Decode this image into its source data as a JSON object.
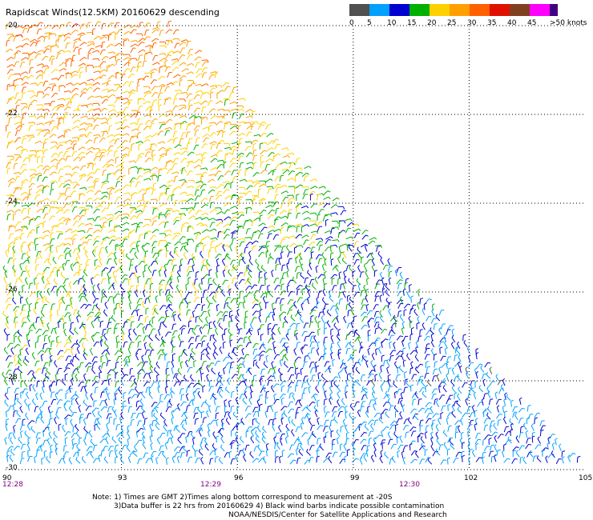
{
  "title": "Rapidscat Winds(12.5KM) 20160629 descending",
  "legend": {
    "colors": [
      "#505050",
      "#00a0ff",
      "#0000d0",
      "#00b000",
      "#ffd000",
      "#ffa000",
      "#ff6000",
      "#e01000",
      "#804020",
      "#ff00ff",
      "#400080"
    ],
    "labels": [
      "0",
      "5",
      "10",
      "15",
      "20",
      "25",
      "30",
      "35",
      "40",
      "45",
      ">50 knots"
    ]
  },
  "map": {
    "lat_labels": [
      "-20",
      "-22",
      "-24",
      "-26",
      "-28",
      "-30"
    ],
    "lon_labels": [
      "90",
      "93",
      "96",
      "99",
      "102",
      "105"
    ],
    "time_labels": [
      "12:28",
      "12:29",
      "12:30"
    ]
  },
  "notes": [
    "Note: 1) Times are GMT 2)Times along bottom correspond to measurement at -20S",
    "3)Data buffer is 22 hrs from 20160629 4) Black wind barbs indicate possible contamination",
    "NOAA/NESDIS/Center for Satellite Applications and Research"
  ]
}
